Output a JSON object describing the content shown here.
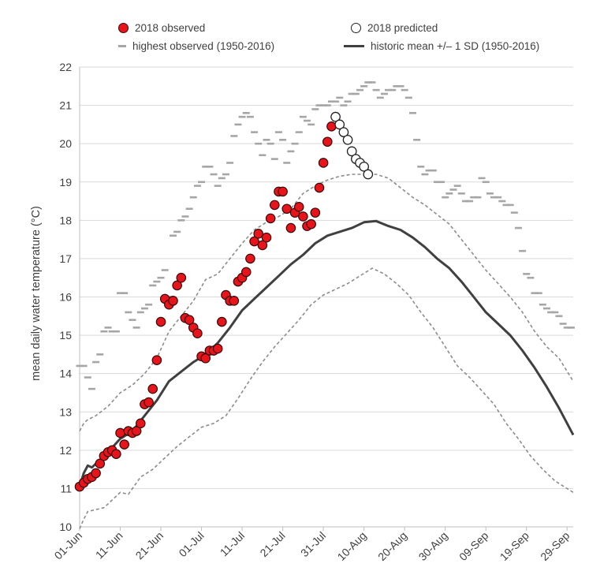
{
  "chart_data": {
    "type": "line",
    "ylabel": "mean daily water temperature (°C)",
    "ylim": [
      10,
      22
    ],
    "y_ticks": [
      "10",
      "11",
      "12",
      "13",
      "14",
      "15",
      "16",
      "17",
      "18",
      "19",
      "20",
      "21",
      "22"
    ],
    "x_tick_labels": [
      "01-Jun",
      "11-Jun",
      "21-Jun",
      "01-Jul",
      "11-Jul",
      "21-Jul",
      "31-Jul",
      "10-Aug",
      "20-Aug",
      "30-Aug",
      "09-Sep",
      "19-Sep",
      "29-Sep"
    ],
    "x_unit": "day index (0 = 01-Jun)",
    "xlim": [
      0,
      121.5
    ],
    "grid": true,
    "legend": {
      "observed": "2018 observed",
      "predicted": "2018 predicted",
      "highest": "highest observed (1950-2016)",
      "mean": "historic mean +/– 1 SD (1950-2016)"
    },
    "colors": {
      "observed": "#e8141b",
      "highest": "#a6a6a6",
      "mean": "#404040",
      "sd": "#8c8c8c",
      "grid": "#d9d9d9"
    },
    "series": [
      {
        "name": "2018 observed",
        "style": "filled-circle",
        "values": [
          11.05,
          11.15,
          11.25,
          11.3,
          11.4,
          11.65,
          11.85,
          11.95,
          12.0,
          11.9,
          12.45,
          12.15,
          12.5,
          12.45,
          12.5,
          12.7,
          13.2,
          13.25,
          13.6,
          14.35,
          15.35,
          15.95,
          15.8,
          15.9,
          16.3,
          16.5,
          15.45,
          15.4,
          15.2,
          15.05,
          14.45,
          14.4,
          14.6,
          14.6,
          14.65,
          15.35,
          16.05,
          15.9,
          15.9,
          16.4,
          16.5,
          16.65,
          17.0,
          17.45,
          17.65,
          17.35,
          17.55,
          18.05,
          18.4,
          18.75,
          18.75,
          18.3,
          17.8,
          18.2,
          18.35,
          18.1,
          17.85,
          17.9,
          18.2,
          18.85,
          19.5,
          20.05,
          20.45
        ]
      },
      {
        "name": "2018 predicted",
        "style": "open-circle",
        "x_start": 63,
        "values": [
          20.7,
          20.5,
          20.3,
          20.1,
          19.8,
          19.6,
          19.5,
          19.4,
          19.2
        ]
      },
      {
        "name": "highest observed (1950-2016)",
        "style": "dash",
        "values": [
          14.2,
          14.2,
          13.9,
          13.6,
          14.3,
          14.5,
          15.1,
          15.2,
          15.1,
          15.1,
          16.1,
          16.1,
          15.6,
          15.4,
          15.2,
          15.6,
          15.7,
          15.8,
          16.3,
          16.4,
          16.5,
          16.7,
          16.0,
          17.6,
          17.7,
          18.0,
          18.1,
          18.3,
          18.6,
          18.9,
          19.0,
          19.4,
          19.4,
          19.2,
          18.9,
          19.1,
          19.2,
          19.5,
          20.2,
          20.5,
          20.7,
          20.8,
          20.7,
          20.3,
          20.0,
          19.7,
          20.1,
          20.0,
          19.6,
          20.3,
          20.1,
          19.5,
          19.8,
          20.0,
          20.3,
          20.7,
          20.6,
          20.5,
          20.9,
          21.0,
          21.0,
          21.0,
          21.1,
          21.1,
          21.2,
          21.0,
          21.1,
          21.3,
          21.3,
          21.4,
          21.5,
          21.6,
          21.6,
          21.4,
          21.2,
          21.3,
          21.4,
          21.4,
          21.5,
          21.5,
          21.4,
          21.2,
          20.8,
          20.1,
          19.4,
          19.2,
          19.3,
          19.3,
          19.0,
          19.0,
          18.6,
          18.7,
          18.8,
          18.9,
          18.7,
          18.5,
          18.5,
          18.6,
          18.6,
          19.1,
          19.0,
          18.7,
          18.6,
          18.6,
          18.5,
          18.4,
          18.4,
          18.2,
          17.8,
          17.2,
          16.6,
          16.5,
          16.1,
          16.1,
          15.8,
          15.7,
          15.6,
          15.6,
          15.5,
          15.3,
          15.2,
          15.2
        ]
      }
    ],
    "mean_curve": {
      "name": "historic mean",
      "x": [
        0,
        1,
        2,
        3,
        5,
        7,
        10,
        13,
        16,
        19,
        22,
        25,
        28,
        31,
        34,
        37,
        40,
        43,
        46,
        49,
        52,
        55,
        58,
        61,
        64,
        67,
        70,
        73,
        76,
        79,
        82,
        85,
        88,
        91,
        94,
        97,
        100,
        103,
        106,
        109,
        112,
        115,
        118,
        121.5
      ],
      "values": [
        11.05,
        11.4,
        11.6,
        11.55,
        11.75,
        11.95,
        12.3,
        12.5,
        12.9,
        13.3,
        13.8,
        14.05,
        14.3,
        14.5,
        14.8,
        15.2,
        15.65,
        15.95,
        16.25,
        16.55,
        16.85,
        17.1,
        17.4,
        17.6,
        17.7,
        17.8,
        17.95,
        17.98,
        17.85,
        17.75,
        17.55,
        17.3,
        17.0,
        16.75,
        16.4,
        16.0,
        15.6,
        15.3,
        15.0,
        14.6,
        14.15,
        13.65,
        13.1,
        12.4
      ]
    },
    "upper_sd": {
      "name": "mean + 1 SD",
      "x": [
        0,
        1,
        2,
        4,
        7,
        10,
        13,
        16,
        19,
        22,
        25,
        28,
        31,
        34,
        37,
        40,
        43,
        46,
        49,
        52,
        55,
        58,
        61,
        64,
        67,
        70,
        73,
        76,
        79,
        82,
        85,
        88,
        91,
        94,
        97,
        100,
        103,
        106,
        109,
        112,
        115,
        118,
        121.5
      ],
      "values": [
        12.5,
        12.7,
        12.8,
        12.9,
        13.15,
        13.5,
        13.7,
        14.0,
        14.4,
        15.1,
        15.5,
        15.9,
        16.45,
        16.6,
        17.0,
        17.4,
        17.75,
        17.95,
        18.1,
        18.3,
        18.7,
        18.9,
        19.05,
        19.15,
        19.2,
        19.2,
        19.2,
        19.1,
        18.85,
        18.6,
        18.4,
        18.15,
        17.9,
        17.5,
        17.1,
        16.7,
        16.35,
        16.0,
        15.6,
        15.1,
        14.7,
        14.4,
        13.8
      ]
    },
    "lower_sd": {
      "name": "mean - 1 SD",
      "x": [
        0,
        1,
        2,
        4,
        6,
        8,
        10,
        12,
        15,
        18,
        21,
        24,
        27,
        30,
        33,
        36,
        39,
        42,
        45,
        48,
        51,
        54,
        57,
        60,
        63,
        66,
        69,
        72,
        75,
        78,
        81,
        84,
        87,
        90,
        93,
        96,
        99,
        102,
        105,
        108,
        111,
        114,
        117,
        121.5
      ],
      "values": [
        9.95,
        10.2,
        10.4,
        10.45,
        10.5,
        10.7,
        10.9,
        10.85,
        11.3,
        11.5,
        11.8,
        12.1,
        12.35,
        12.6,
        12.7,
        12.9,
        13.35,
        13.85,
        14.3,
        14.7,
        15.05,
        15.4,
        15.8,
        16.05,
        16.2,
        16.35,
        16.55,
        16.75,
        16.6,
        16.35,
        16.05,
        15.6,
        15.2,
        14.7,
        14.2,
        13.9,
        13.55,
        13.2,
        12.7,
        12.3,
        11.85,
        11.5,
        11.2,
        10.9
      ]
    }
  }
}
